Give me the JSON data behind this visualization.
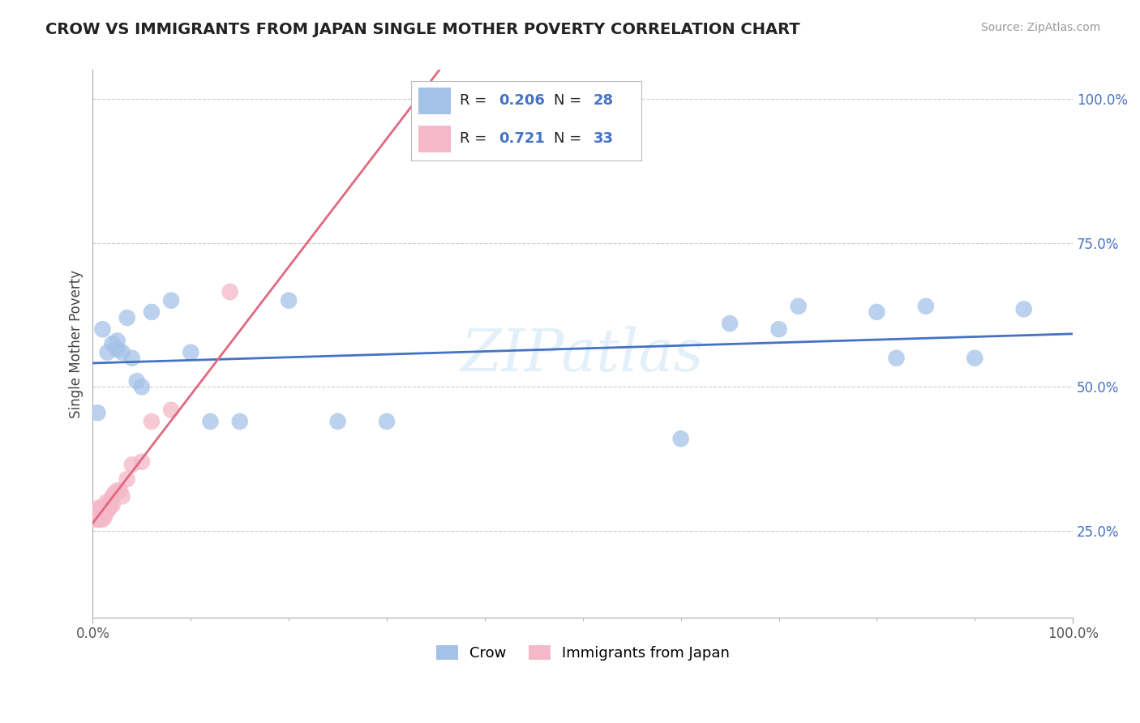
{
  "title": "CROW VS IMMIGRANTS FROM JAPAN SINGLE MOTHER POVERTY CORRELATION CHART",
  "source": "Source: ZipAtlas.com",
  "ylabel": "Single Mother Poverty",
  "crow_R": 0.206,
  "crow_N": 28,
  "japan_R": 0.721,
  "japan_N": 33,
  "crow_color": "#a4c2e8",
  "japan_color": "#f4b8c8",
  "crow_line_color": "#4472c4",
  "japan_line_color": "#e06880",
  "legend_R_color": "#4472c4",
  "watermark": "ZIPatlas",
  "crow_x": [
    0.005,
    0.01,
    0.015,
    0.02,
    0.025,
    0.025,
    0.03,
    0.035,
    0.04,
    0.045,
    0.05,
    0.06,
    0.08,
    0.1,
    0.12,
    0.15,
    0.2,
    0.25,
    0.3,
    0.6,
    0.65,
    0.7,
    0.72,
    0.8,
    0.82,
    0.85,
    0.9,
    0.95
  ],
  "crow_y": [
    0.455,
    0.6,
    0.56,
    0.575,
    0.58,
    0.565,
    0.56,
    0.62,
    0.55,
    0.51,
    0.5,
    0.63,
    0.65,
    0.56,
    0.44,
    0.44,
    0.65,
    0.44,
    0.44,
    0.41,
    0.61,
    0.6,
    0.64,
    0.63,
    0.55,
    0.64,
    0.55,
    0.635
  ],
  "japan_x": [
    0.003,
    0.004,
    0.005,
    0.006,
    0.007,
    0.008,
    0.008,
    0.009,
    0.01,
    0.01,
    0.011,
    0.012,
    0.012,
    0.013,
    0.014,
    0.015,
    0.016,
    0.017,
    0.018,
    0.019,
    0.02,
    0.02,
    0.022,
    0.025,
    0.028,
    0.03,
    0.035,
    0.04,
    0.05,
    0.06,
    0.08,
    0.14,
    0.35
  ],
  "japan_y": [
    0.27,
    0.285,
    0.27,
    0.29,
    0.27,
    0.285,
    0.28,
    0.29,
    0.27,
    0.275,
    0.28,
    0.275,
    0.28,
    0.285,
    0.3,
    0.285,
    0.295,
    0.29,
    0.295,
    0.305,
    0.295,
    0.31,
    0.315,
    0.32,
    0.32,
    0.31,
    0.34,
    0.365,
    0.37,
    0.44,
    0.46,
    0.665,
    1.0
  ],
  "xlim": [
    0.0,
    1.0
  ],
  "ylim": [
    0.1,
    1.05
  ],
  "ytick_vals": [
    0.25,
    0.5,
    0.75,
    1.0
  ],
  "ytick_labels": [
    "25.0%",
    "50.0%",
    "75.0%",
    "100.0%"
  ]
}
